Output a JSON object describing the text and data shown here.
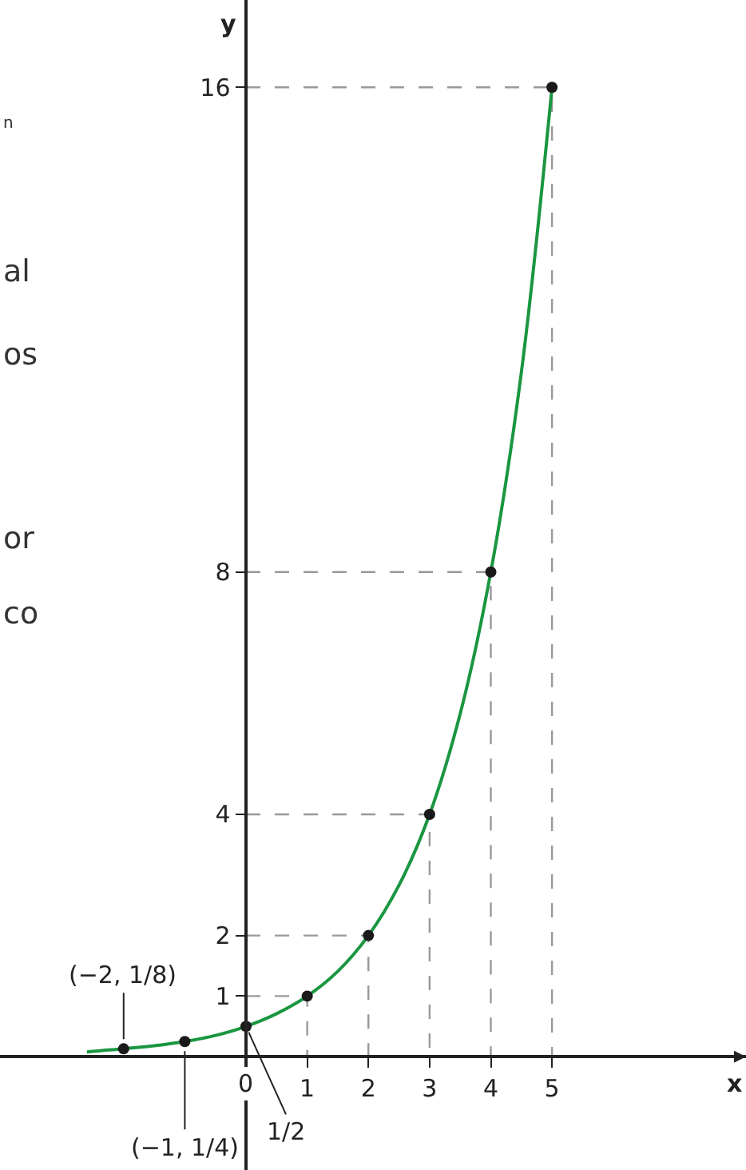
{
  "chart_data": {
    "type": "line",
    "xlabel": "x",
    "ylabel": "y",
    "xlim": [
      -4.02,
      8.17
    ],
    "ylim": [
      -1.87,
      17.44
    ],
    "xticks": [
      {
        "value": 0,
        "label": "0"
      },
      1,
      2,
      3,
      4,
      5
    ],
    "yticks": [
      1,
      2,
      4,
      8,
      16
    ],
    "series": [
      {
        "color": "#1a9641",
        "x": [
          -2.6,
          -2,
          -1.5,
          -1,
          -0.5,
          0,
          0.5,
          1,
          1.5,
          2,
          2.5,
          3,
          3.5,
          4,
          4.5,
          5
        ],
        "values": [
          0.08,
          0.13,
          0.18,
          0.25,
          0.35,
          0.5,
          0.71,
          1,
          1.41,
          2,
          2.83,
          4,
          5.66,
          8,
          11.3,
          16
        ]
      },
      {
        "type": "scatter",
        "color": "#1a1a1a",
        "marker": "circle",
        "x": [
          -2,
          -1,
          0,
          1,
          2,
          3,
          4,
          5
        ],
        "values": [
          0.13,
          0.25,
          0.5,
          1,
          2,
          4,
          8,
          16
        ]
      },
      {
        "color": "#999999",
        "line_style": "dashed",
        "x": [
          0,
          1,
          1
        ],
        "values": [
          1,
          1,
          0
        ]
      },
      {
        "color": "#999999",
        "line_style": "dashed",
        "x": [
          0,
          2,
          2
        ],
        "values": [
          2,
          2,
          0
        ]
      },
      {
        "color": "#999999",
        "line_style": "dashed",
        "x": [
          0,
          3,
          3
        ],
        "values": [
          4,
          4,
          0
        ]
      },
      {
        "color": "#999999",
        "line_style": "dashed",
        "x": [
          0,
          4,
          4
        ],
        "values": [
          8,
          8,
          0
        ]
      },
      {
        "color": "#999999",
        "line_style": "dashed",
        "x": [
          0,
          5,
          5
        ],
        "values": [
          16,
          16,
          0
        ]
      }
    ],
    "annotations": [
      {
        "text": "(−2, 1/8)",
        "x": -2,
        "y": 0.13
      },
      {
        "text": "(−1, 1/4)",
        "x": -1,
        "y": 0.25
      },
      {
        "text": "1/2",
        "x": 0,
        "y": 0.5
      },
      "n",
      "al",
      "os",
      "or",
      "co"
    ]
  }
}
